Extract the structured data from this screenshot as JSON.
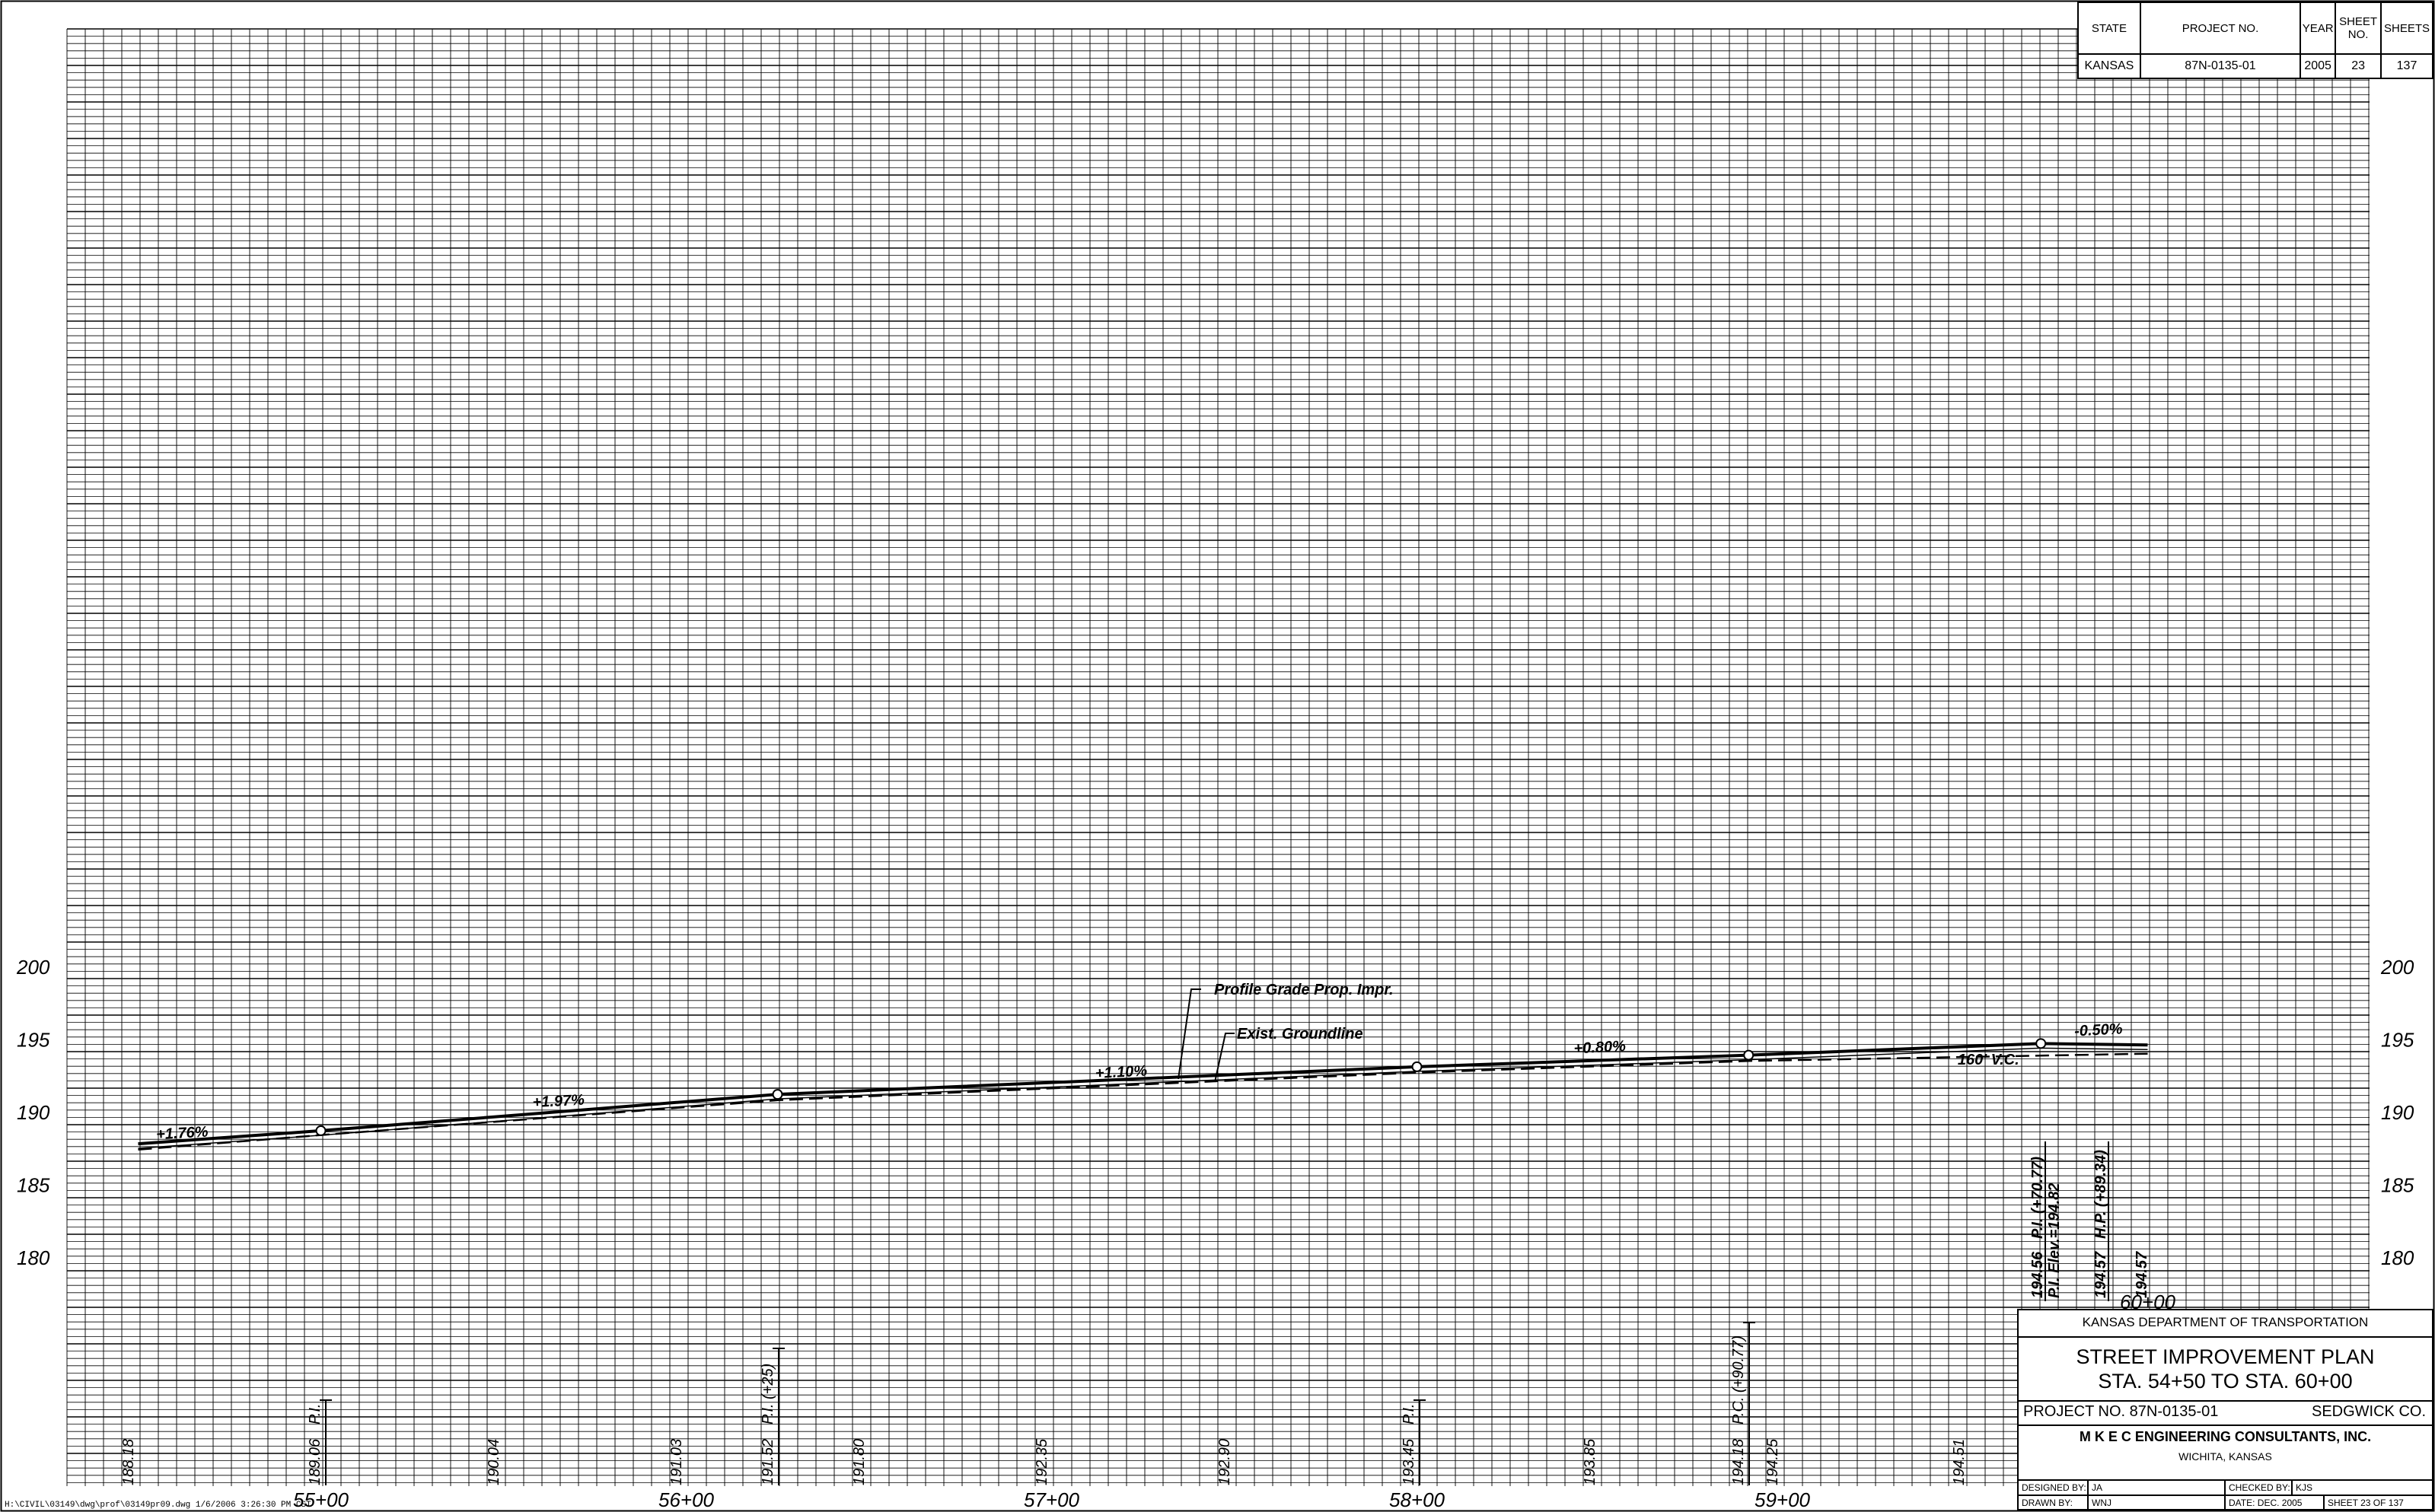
{
  "header_table": {
    "col_state": "STATE",
    "col_project": "PROJECT NO.",
    "col_year": "YEAR",
    "col_sheet_no": "SHEET NO.",
    "col_sheets": "SHEETS",
    "state": "KANSAS",
    "project": "87N-0135-01",
    "year": "2005",
    "sheet_no": "23",
    "sheets": "137"
  },
  "profile": {
    "elevation_labels": [
      "200",
      "195",
      "190",
      "185",
      "180"
    ],
    "station_labels": [
      "55+00",
      "56+00",
      "57+00",
      "58+00",
      "59+00",
      "60+00"
    ],
    "grades": [
      {
        "text": "+1.76%"
      },
      {
        "text": "+1.97%"
      },
      {
        "text": "+1.10%"
      },
      {
        "text": "+0.80%"
      },
      {
        "text": "-0.50%"
      }
    ],
    "vertical_curve": "160' V.C.",
    "callouts": {
      "profile_grade": "Profile Grade Prop. Impr.",
      "groundline": "Exist. Groundline"
    },
    "bottom_elevations": [
      "188.18",
      "189.06",
      "190.04",
      "191.03",
      "191.52",
      "191.80",
      "192.35",
      "192.90",
      "193.45",
      "193.85",
      "194.18",
      "194.25",
      "194.51"
    ],
    "pi_labels": [
      "P.I.",
      "P.I. (+25)",
      "P.I.",
      "P.C. (+90.77)"
    ],
    "vc_labels": {
      "elev_1": "194.56",
      "pi": "P.I. (+70.77)",
      "pi_elev": "P.I. Elev.=194.82",
      "elev_2": "194.57",
      "hp": "H.P. (+89.34)",
      "elev_3": "194.57"
    }
  },
  "title_block": {
    "agency": "KANSAS DEPARTMENT OF TRANSPORTATION",
    "plan_title": "STREET IMPROVEMENT PLAN",
    "station_range": "STA. 54+50 TO STA. 60+00",
    "project_no": "PROJECT NO. 87N-0135-01",
    "county": "SEDGWICK CO.",
    "consultant": "M K E C  ENGINEERING  CONSULTANTS, INC.",
    "city": "WICHITA, KANSAS",
    "designed_by_label": "DESIGNED BY:",
    "designed_by": "JA",
    "checked_by_label": "CHECKED BY:",
    "checked_by": "KJS",
    "drawn_by_label": "DRAWN BY:",
    "drawn_by": "WNJ",
    "date": "DATE: DEC. 2005",
    "sheet": "SHEET 23 OF 137"
  },
  "file_path": "H:\\CIVIL\\03149\\dwg\\prof\\03149pr09.dwg  1/6/2006  3:26:30 PM CST"
}
